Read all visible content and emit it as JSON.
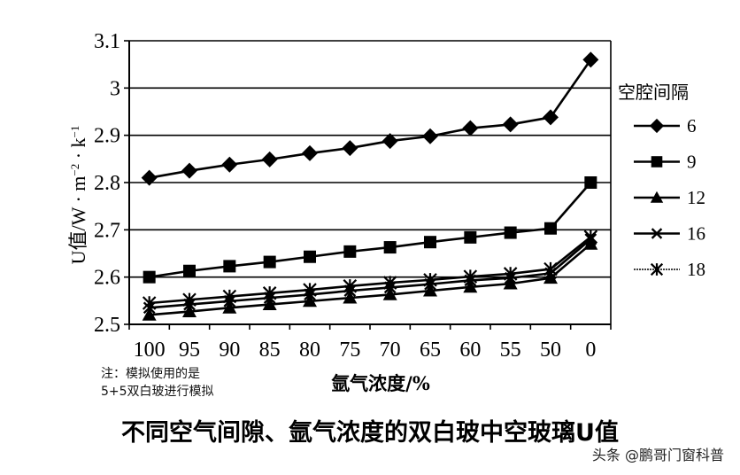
{
  "chart_data": {
    "type": "line",
    "title": "不同空气间隙、氩气浓度的双白玻中空玻璃U值",
    "xlabel": "氩气浓度/%",
    "ylabel": "U值/W·m⁻²·k⁻¹",
    "categories": [
      "100",
      "95",
      "90",
      "85",
      "80",
      "75",
      "70",
      "65",
      "60",
      "55",
      "50",
      "0"
    ],
    "ylim": [
      2.5,
      3.1
    ],
    "yticks": [
      "3.1",
      "3",
      "2.9",
      "2.8",
      "2.7",
      "2.6",
      "2.5"
    ],
    "ytick_values": [
      3.1,
      3.0,
      2.9,
      2.8,
      2.7,
      2.6,
      2.5
    ],
    "grid": true,
    "legend_title": "空腔间隔",
    "legend_position": "right",
    "series": [
      {
        "name": "6",
        "marker": "diamond",
        "values": [
          2.81,
          2.825,
          2.838,
          2.849,
          2.862,
          2.873,
          2.888,
          2.898,
          2.915,
          2.923,
          2.938,
          3.06
        ]
      },
      {
        "name": "9",
        "marker": "square",
        "values": [
          2.6,
          2.613,
          2.623,
          2.632,
          2.643,
          2.654,
          2.663,
          2.674,
          2.684,
          2.694,
          2.703,
          2.8
        ]
      },
      {
        "name": "12",
        "marker": "triangle",
        "values": [
          2.52,
          2.527,
          2.535,
          2.542,
          2.549,
          2.556,
          2.563,
          2.571,
          2.579,
          2.586,
          2.598,
          2.67
        ]
      },
      {
        "name": "16",
        "marker": "x",
        "values": [
          2.535,
          2.542,
          2.549,
          2.556,
          2.563,
          2.571,
          2.578,
          2.585,
          2.593,
          2.598,
          2.608,
          2.68
        ]
      },
      {
        "name": "18",
        "marker": "asterisk",
        "values": [
          2.545,
          2.552,
          2.559,
          2.566,
          2.573,
          2.581,
          2.588,
          2.594,
          2.601,
          2.607,
          2.617,
          2.685
        ]
      }
    ]
  },
  "note": {
    "line1": "注：模拟使用的是",
    "line2": "5+5双白玻进行模拟"
  },
  "caption": "不同空气间隙、氩气浓度的双白玻中空玻璃U值",
  "watermark": "头条 @鹏哥门窗科普"
}
